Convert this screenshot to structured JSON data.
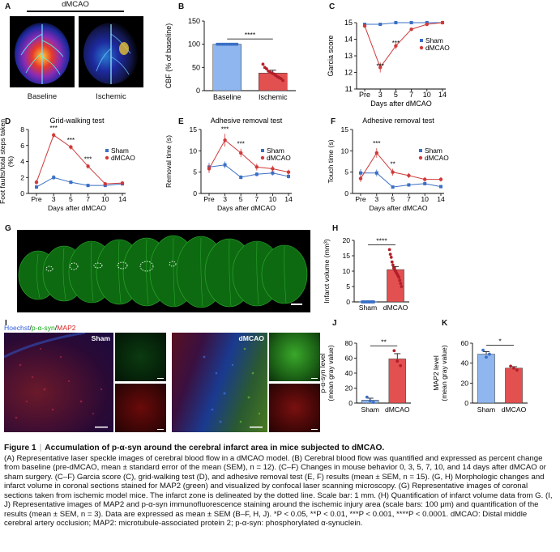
{
  "colors": {
    "sham": "#3a6fc4",
    "dmcao": "#d03a3a",
    "bar_sham": "#8fb6ee",
    "bar_dmcao": "#e35050"
  },
  "panels": {
    "A": {
      "letter": "A",
      "header": "dMCAO",
      "labels": [
        "Baseline",
        "Ischemic"
      ]
    },
    "G": {
      "letter": "G"
    },
    "I": {
      "letter": "I",
      "legend": {
        "hoechst": "Hoechst",
        "sep": "/",
        "psyn": "p-α-syn",
        "map2": "MAP2"
      },
      "sham_label": "Sham",
      "dmcao_label": "dMCAO"
    }
  },
  "chart_data": [
    {
      "id": "B",
      "letter": "B",
      "type": "bar",
      "categories": [
        "Baseline",
        "Ischemic"
      ],
      "values": [
        100,
        38
      ],
      "errors": [
        1,
        6
      ],
      "ylabel": "CBF (% of baseline)",
      "ylim": [
        0,
        150
      ],
      "yticks": [
        0,
        50,
        100,
        150
      ],
      "sig": "****",
      "colors": [
        "#8fb6ee",
        "#e35050"
      ],
      "dots": [
        [
          100,
          100,
          100,
          100,
          100,
          100,
          100,
          100,
          100,
          100,
          100,
          100
        ],
        [
          57,
          50,
          47,
          42,
          40,
          38,
          36,
          33,
          30,
          28,
          26,
          22
        ]
      ]
    },
    {
      "id": "C",
      "letter": "C",
      "type": "line",
      "title": "",
      "ylabel": "Garcia score",
      "xlabel": "Days after dMCAO",
      "categories": [
        "Pre",
        "3",
        "5",
        "7",
        "10",
        "14"
      ],
      "ylim": [
        11,
        15
      ],
      "yticks": [
        11,
        12,
        13,
        14,
        15
      ],
      "legend_pos": "middle-right",
      "series": [
        {
          "name": "Sham",
          "values": [
            14.9,
            14.9,
            15.0,
            15.0,
            15.0,
            15.0
          ],
          "errors": [
            0.05,
            0.05,
            0.05,
            0.05,
            0.05,
            0.05
          ]
        },
        {
          "name": "dMCAO",
          "values": [
            14.8,
            12.3,
            13.6,
            14.6,
            14.9,
            15.0
          ],
          "errors": [
            0.1,
            0.3,
            0.2,
            0.1,
            0.05,
            0.05
          ]
        }
      ],
      "sig": [
        {
          "x": "3",
          "label": "***"
        },
        {
          "x": "5",
          "label": "***"
        }
      ]
    },
    {
      "id": "D",
      "letter": "D",
      "type": "line",
      "title": "Grid-walking test",
      "ylabel": "Foot faults/total steps taken (%)",
      "xlabel": "Days after dMCAO",
      "categories": [
        "Pre",
        "3",
        "5",
        "7",
        "10",
        "14"
      ],
      "ylim": [
        0,
        8
      ],
      "yticks": [
        0,
        2,
        4,
        6,
        8
      ],
      "legend_pos": "middle-right",
      "series": [
        {
          "name": "Sham",
          "values": [
            0.8,
            2.0,
            1.4,
            1.0,
            1.0,
            1.2
          ],
          "errors": [
            0.2,
            0.3,
            0.2,
            0.2,
            0.2,
            0.2
          ]
        },
        {
          "name": "dMCAO",
          "values": [
            1.4,
            7.3,
            5.8,
            3.4,
            1.2,
            1.3
          ],
          "errors": [
            0.3,
            0.3,
            0.3,
            0.3,
            0.2,
            0.2
          ]
        }
      ],
      "sig": [
        {
          "x": "3",
          "label": "***"
        },
        {
          "x": "5",
          "label": "***"
        },
        {
          "x": "7",
          "label": "***"
        }
      ]
    },
    {
      "id": "E",
      "letter": "E",
      "type": "line",
      "title": "Adhesive removal test",
      "ylabel": "Removal time (s)",
      "xlabel": "Days after dMCAO",
      "categories": [
        "Pre",
        "3",
        "5",
        "7",
        "10",
        "14"
      ],
      "ylim": [
        0,
        15
      ],
      "yticks": [
        0,
        5,
        10,
        15
      ],
      "legend_pos": "middle-right",
      "series": [
        {
          "name": "Sham",
          "values": [
            6.2,
            6.7,
            3.8,
            4.5,
            4.8,
            4.0
          ],
          "errors": [
            1.0,
            0.8,
            0.5,
            0.5,
            0.6,
            0.5
          ]
        },
        {
          "name": "dMCAO",
          "values": [
            5.8,
            12.5,
            9.5,
            6.2,
            5.8,
            5.0
          ],
          "errors": [
            1.0,
            1.5,
            1.0,
            0.8,
            0.7,
            0.6
          ]
        }
      ],
      "sig": [
        {
          "x": "3",
          "label": "***"
        },
        {
          "x": "5",
          "label": "***"
        }
      ]
    },
    {
      "id": "F",
      "letter": "F",
      "type": "line",
      "title": "Adhesive removal test",
      "ylabel": "Touch time (s)",
      "xlabel": "Days after dMCAO",
      "categories": [
        "Pre",
        "3",
        "5",
        "7",
        "10",
        "14"
      ],
      "ylim": [
        0,
        15
      ],
      "yticks": [
        0,
        5,
        10,
        15
      ],
      "legend_pos": "middle-right",
      "series": [
        {
          "name": "Sham",
          "values": [
            4.8,
            4.8,
            1.5,
            2.0,
            2.3,
            1.6
          ],
          "errors": [
            0.9,
            0.8,
            0.3,
            0.4,
            0.4,
            0.3
          ]
        },
        {
          "name": "dMCAO",
          "values": [
            3.5,
            9.5,
            5.0,
            4.2,
            3.3,
            3.3
          ],
          "errors": [
            0.8,
            1.1,
            0.8,
            0.6,
            0.5,
            0.5
          ]
        }
      ],
      "sig": [
        {
          "x": "3",
          "label": "***"
        },
        {
          "x": "5",
          "label": "**"
        }
      ]
    },
    {
      "id": "H",
      "letter": "H",
      "type": "bar",
      "categories": [
        "Sham",
        "dMCAO"
      ],
      "values": [
        0,
        10.5
      ],
      "errors": [
        0,
        1.0
      ],
      "ylabel": "Infarct volume (mm³)",
      "ylim": [
        0,
        20
      ],
      "yticks": [
        0,
        5,
        10,
        15,
        20
      ],
      "sig": "****",
      "colors": [
        "#8fb6ee",
        "#e35050"
      ],
      "dots": [
        [
          0,
          0,
          0,
          0,
          0,
          0,
          0,
          0,
          0,
          0,
          0,
          0,
          0,
          0,
          0
        ],
        [
          17,
          15.5,
          14.5,
          13,
          12,
          11,
          10.5,
          10,
          9.5,
          9,
          8.5,
          8,
          7,
          6,
          5
        ]
      ]
    },
    {
      "id": "J",
      "letter": "J",
      "type": "bar",
      "categories": [
        "Sham",
        "dMCAO"
      ],
      "values": [
        4,
        59
      ],
      "errors": [
        2.5,
        7
      ],
      "ylabel": "p-α-syn level (mean gray value)",
      "ylim": [
        0,
        80
      ],
      "yticks": [
        0,
        20,
        40,
        60,
        80
      ],
      "sig": "**",
      "colors": [
        "#8fb6ee",
        "#e35050"
      ],
      "dots": [
        [
          8,
          3,
          1
        ],
        [
          70,
          56,
          50
        ]
      ]
    },
    {
      "id": "K",
      "letter": "K",
      "type": "bar",
      "categories": [
        "Sham",
        "dMCAO"
      ],
      "values": [
        49,
        35
      ],
      "errors": [
        2.5,
        1.5
      ],
      "ylabel": "MAP2 level (mean gray value)",
      "ylim": [
        0,
        60
      ],
      "yticks": [
        0,
        20,
        40,
        60
      ],
      "sig": "*",
      "colors": [
        "#8fb6ee",
        "#e35050"
      ],
      "dots": [
        [
          53,
          46,
          49
        ],
        [
          37,
          35,
          33
        ]
      ]
    }
  ],
  "caption": {
    "figure_label": "Figure 1",
    "separator": "|",
    "title": "Accumulation of p-α-syn around the cerebral infarct area in mice subjected to dMCAO.",
    "body": "(A) Representative laser speckle images of cerebral blood flow in a dMCAO model. (B) Cerebral blood flow was quantified and expressed as percent change from baseline (pre-dMCAO, mean ± standard error of the mean (SEM), n = 12). (C–F) Changes in mouse behavior 0, 3, 5, 7, 10, and 14 days after dMCAO or sham surgery. (C–F) Garcia score (C), grid-walking test (D), and adhesive removal test (E, F) results (mean ± SEM, n = 15). (G, H) Morphologic changes and infarct volume in coronal sections stained for MAP2 (green) and visualized by confocal laser scanning microscopy. (G) Representative images of coronal sections taken from ischemic model mice. The infarct zone is delineated by the dotted line. Scale bar: 1 mm. (H) Quantification of infarct volume data from G. (I, J) Representative images of MAP2 and p-α-syn immunofluorescence staining around the ischemic injury area (scale bars: 100 μm) and quantification of the results (mean ± SEM, n = 3). Data are expressed as mean ± SEM (B–F, H, J). *P < 0.05, **P < 0.01, ***P < 0.001, ****P < 0.0001. dMCAO: Distal middle cerebral artery occlusion; MAP2: microtubule-associated protein 2; p-α-syn: phosphorylated α-synuclein."
  }
}
